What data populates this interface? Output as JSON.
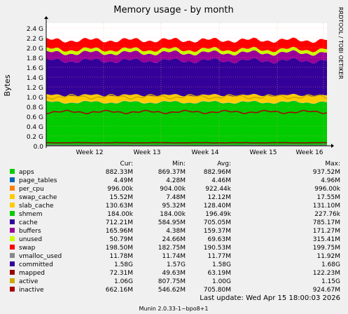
{
  "chart_data": {
    "type": "area",
    "title": "Memory usage - by month",
    "ylabel": "Bytes",
    "xlabel": "",
    "ylim": [
      0,
      2.5
    ],
    "y_unit": "G",
    "y_ticks": [
      "0.0",
      "0.2 G",
      "0.4 G",
      "0.6 G",
      "0.8 G",
      "1.0 G",
      "1.2 G",
      "1.4 G",
      "1.6 G",
      "1.8 G",
      "2.0 G",
      "2.2 G",
      "2.4 G"
    ],
    "x_ticks": [
      "Week 12",
      "Week 13",
      "Week 14",
      "Week 15",
      "Week 16"
    ],
    "grid": true,
    "stack_order": [
      "apps",
      "page_tables",
      "per_cpu",
      "swap_cache",
      "slab_cache",
      "shmem",
      "cache",
      "buffers",
      "unused",
      "swap"
    ],
    "series": [
      {
        "name": "apps",
        "color": "#00cc00",
        "cur": "882.33M",
        "min": "869.37M",
        "avg": "882.96M",
        "max": "937.52M",
        "stacked_avg_gb": 0.883
      },
      {
        "name": "page_tables",
        "color": "#0066b3",
        "cur": "4.49M",
        "min": "4.28M",
        "avg": "4.46M",
        "max": "4.96M",
        "stacked_avg_gb": 0.0045
      },
      {
        "name": "per_cpu",
        "color": "#ff8000",
        "cur": "996.00k",
        "min": "904.00k",
        "avg": "922.44k",
        "max": "996.00k",
        "stacked_avg_gb": 0.001
      },
      {
        "name": "swap_cache",
        "color": "#ffcc00",
        "cur": "15.52M",
        "min": "7.48M",
        "avg": "12.12M",
        "max": "17.55M",
        "stacked_avg_gb": 0.012
      },
      {
        "name": "slab_cache",
        "color": "#ffcc00",
        "cur": "130.63M",
        "min": "95.32M",
        "avg": "128.40M",
        "max": "131.10M",
        "stacked_avg_gb": 0.128
      },
      {
        "name": "shmem",
        "color": "#00cc00",
        "cur": "184.00k",
        "min": "184.00k",
        "avg": "196.49k",
        "max": "227.76k",
        "stacked_avg_gb": 0.0002
      },
      {
        "name": "cache",
        "color": "#330099",
        "cur": "712.21M",
        "min": "584.95M",
        "avg": "705.05M",
        "max": "785.17M",
        "stacked_avg_gb": 0.705
      },
      {
        "name": "buffers",
        "color": "#990099",
        "cur": "165.96M",
        "min": "4.38M",
        "avg": "159.37M",
        "max": "171.27M",
        "stacked_avg_gb": 0.159
      },
      {
        "name": "unused",
        "color": "#ccff00",
        "cur": "50.79M",
        "min": "24.66M",
        "avg": "69.63M",
        "max": "315.41M",
        "stacked_avg_gb": 0.07
      },
      {
        "name": "swap",
        "color": "#ff0000",
        "cur": "198.50M",
        "min": "182.75M",
        "avg": "190.53M",
        "max": "199.75M",
        "stacked_avg_gb": 0.19
      },
      {
        "name": "vmalloc_used",
        "color": "#888888",
        "cur": "11.78M",
        "min": "11.74M",
        "avg": "11.77M",
        "max": "11.92M",
        "line": true
      },
      {
        "name": "committed",
        "color": "#330099",
        "cur": "1.58G",
        "min": "1.57G",
        "avg": "1.58G",
        "max": "1.68G",
        "line": true
      },
      {
        "name": "mapped",
        "color": "#990000",
        "cur": "72.31M",
        "min": "49.63M",
        "avg": "63.19M",
        "max": "122.23M",
        "line": true
      },
      {
        "name": "active",
        "color": "#ccaa00",
        "cur": "1.06G",
        "min": "807.75M",
        "avg": "1.00G",
        "max": "1.15G",
        "line": true
      },
      {
        "name": "inactive",
        "color": "#aa0000",
        "cur": "662.16M",
        "min": "546.62M",
        "avg": "705.80M",
        "max": "924.67M",
        "line": true
      }
    ],
    "columns": [
      "Cur:",
      "Min:",
      "Avg:",
      "Max:"
    ],
    "footer_update": "Last update:  Wed Apr 15 18:00:03 2026",
    "footer_version": "Munin 2.0.33-1~bpo8+1",
    "side_label": "RRDTOOL / TOBI OETIKER"
  },
  "colors": {
    "background": "#f0f0f0",
    "plot_bg": "#ffffff",
    "grid": "#e0e0e0",
    "grid_major": "#ff9999"
  }
}
